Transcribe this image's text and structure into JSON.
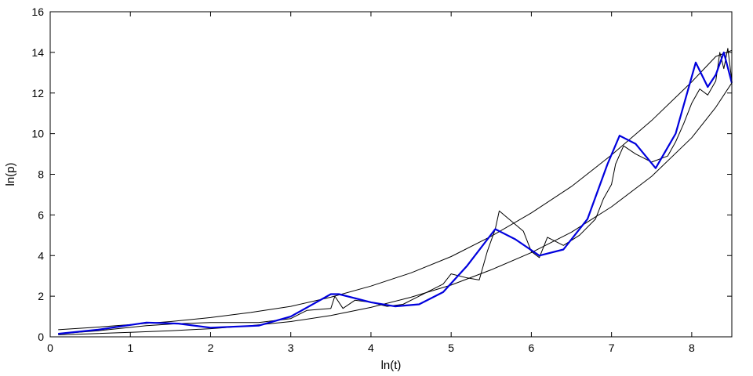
{
  "chart_data": {
    "type": "line",
    "title": "",
    "xlabel": "ln(t)",
    "ylabel": "ln(p)",
    "xlim": [
      0,
      8.5
    ],
    "ylim": [
      0,
      16
    ],
    "x_ticks": [
      0,
      1,
      2,
      3,
      4,
      5,
      6,
      7,
      8
    ],
    "y_ticks": [
      0,
      2,
      4,
      6,
      8,
      10,
      12,
      14,
      16
    ],
    "grid": false,
    "legend": "none",
    "series": [
      {
        "color": "#000000",
        "style": "thin-line",
        "x": [
          0.1,
          0.5,
          1.0,
          1.5,
          2.0,
          2.5,
          3.0,
          3.5,
          4.0,
          4.5,
          5.0,
          5.5,
          6.0,
          6.5,
          7.0,
          7.5,
          8.0,
          8.3,
          8.5
        ],
        "values": [
          0.35,
          0.45,
          0.6,
          0.75,
          0.95,
          1.2,
          1.5,
          1.95,
          2.5,
          3.15,
          3.95,
          4.95,
          6.1,
          7.4,
          8.95,
          10.65,
          12.55,
          13.8,
          14.1
        ]
      },
      {
        "color": "#000000",
        "style": "thin-line",
        "x": [
          0.1,
          0.5,
          1.0,
          1.5,
          2.0,
          2.5,
          3.0,
          3.5,
          4.0,
          4.5,
          5.0,
          5.5,
          6.0,
          6.5,
          7.0,
          7.5,
          8.0,
          8.3,
          8.5
        ],
        "values": [
          0.1,
          0.15,
          0.22,
          0.3,
          0.4,
          0.55,
          0.75,
          1.05,
          1.45,
          1.95,
          2.55,
          3.3,
          4.15,
          5.15,
          6.4,
          7.9,
          9.8,
          11.3,
          12.5
        ]
      },
      {
        "color": "#000000",
        "style": "noisy-line",
        "x": [
          0.1,
          0.6,
          1.2,
          1.6,
          2.0,
          2.6,
          3.0,
          3.2,
          3.5,
          3.55,
          3.65,
          3.8,
          4.0,
          4.2,
          4.4,
          4.7,
          4.9,
          5.0,
          5.2,
          5.35,
          5.45,
          5.55,
          5.6,
          5.75,
          5.9,
          6.0,
          6.1,
          6.2,
          6.4,
          6.6,
          6.8,
          6.9,
          7.0,
          7.05,
          7.15,
          7.3,
          7.5,
          7.7,
          7.8,
          7.9,
          8.0,
          8.1,
          8.2,
          8.3,
          8.35,
          8.4,
          8.45,
          8.5
        ],
        "values": [
          0.15,
          0.3,
          0.55,
          0.65,
          0.7,
          0.7,
          0.9,
          1.3,
          1.4,
          2.0,
          1.4,
          1.8,
          1.7,
          1.5,
          1.6,
          2.2,
          2.6,
          3.1,
          2.9,
          2.8,
          4.2,
          5.3,
          6.2,
          5.7,
          5.2,
          4.2,
          3.9,
          4.9,
          4.5,
          5.0,
          5.8,
          6.8,
          7.5,
          8.5,
          9.4,
          9.0,
          8.6,
          8.9,
          9.6,
          10.5,
          11.5,
          12.2,
          11.9,
          12.6,
          14.0,
          13.2,
          14.2,
          12.6
        ]
      },
      {
        "color": "#0000dd",
        "style": "thick-line",
        "x": [
          0.1,
          0.6,
          1.2,
          1.6,
          2.0,
          2.6,
          3.0,
          3.5,
          3.6,
          4.0,
          4.3,
          4.6,
          4.9,
          5.2,
          5.55,
          5.8,
          6.1,
          6.4,
          6.7,
          6.95,
          7.1,
          7.3,
          7.55,
          7.8,
          8.05,
          8.2,
          8.3,
          8.4,
          8.5
        ],
        "values": [
          0.15,
          0.35,
          0.7,
          0.65,
          0.45,
          0.55,
          1.0,
          2.1,
          2.1,
          1.7,
          1.5,
          1.6,
          2.2,
          3.5,
          5.3,
          4.8,
          4.0,
          4.3,
          5.8,
          8.5,
          9.9,
          9.5,
          8.3,
          10.0,
          13.5,
          12.3,
          12.9,
          14.0,
          12.5
        ]
      }
    ]
  }
}
